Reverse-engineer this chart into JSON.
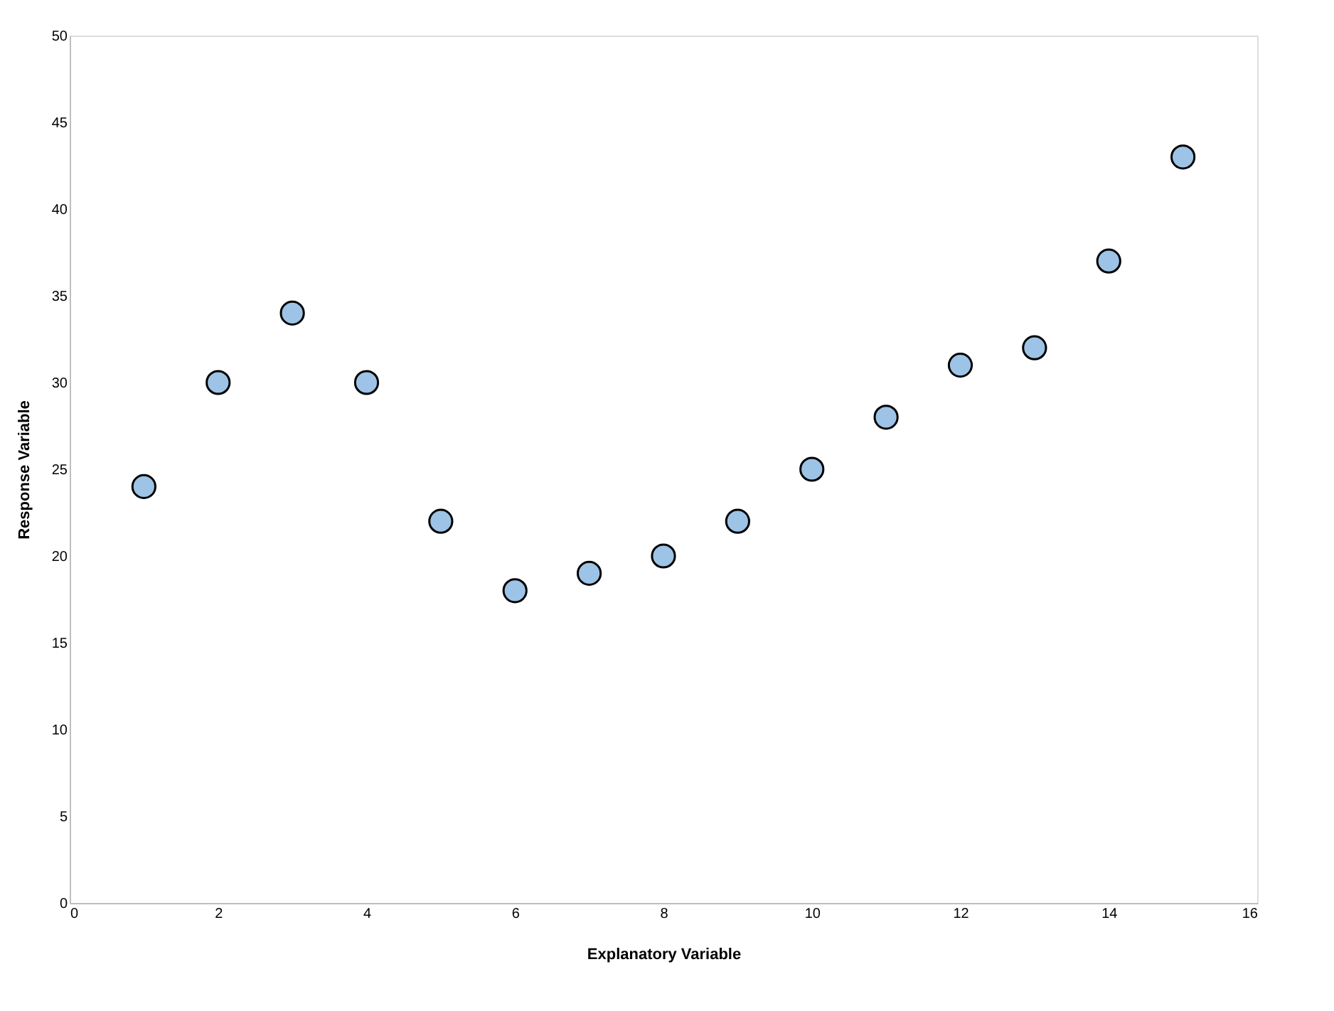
{
  "chart_data": {
    "type": "scatter",
    "xlabel": "Explanatory Variable",
    "ylabel": "Response Variable",
    "x": [
      1,
      2,
      3,
      4,
      5,
      6,
      7,
      8,
      9,
      10,
      11,
      12,
      13,
      14,
      15
    ],
    "series": [
      {
        "color": "#9dc3e6",
        "values": [
          24,
          30,
          34,
          30,
          22,
          18,
          19,
          20,
          22,
          25,
          28,
          31,
          32,
          37,
          43
        ]
      }
    ],
    "xlim": [
      0,
      16
    ],
    "xticks": [
      0,
      2,
      4,
      6,
      8,
      10,
      12,
      14,
      16
    ],
    "ylim": [
      0,
      50
    ],
    "yticks": [
      0,
      5,
      10,
      15,
      20,
      25,
      30,
      35,
      40,
      45,
      50
    ],
    "grid": false,
    "marker": "circle"
  }
}
